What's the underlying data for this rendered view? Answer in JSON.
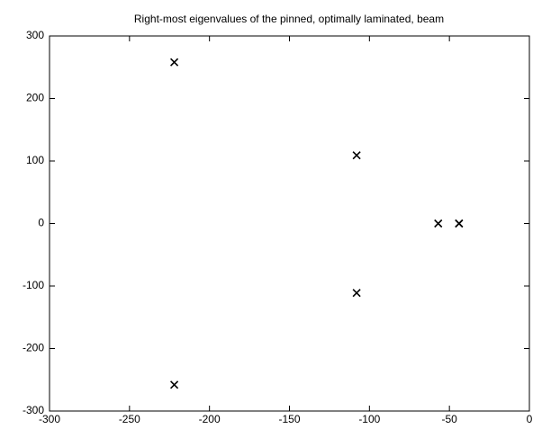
{
  "chart_data": {
    "type": "scatter",
    "title": "Right-most eigenvalues of the pinned, optimally laminated, beam",
    "x": [
      -222,
      -222,
      -108,
      -108,
      -57,
      -44,
      -44
    ],
    "y": [
      258,
      -258,
      109,
      -111,
      0,
      0,
      0
    ],
    "color": "#000000",
    "xlim": [
      -300,
      0
    ],
    "ylim": [
      -300,
      300
    ],
    "xticks": [
      -300,
      -250,
      -200,
      -150,
      -100,
      -50,
      0
    ],
    "yticks": [
      -300,
      -200,
      -100,
      0,
      100,
      200,
      300
    ],
    "grid": false
  }
}
